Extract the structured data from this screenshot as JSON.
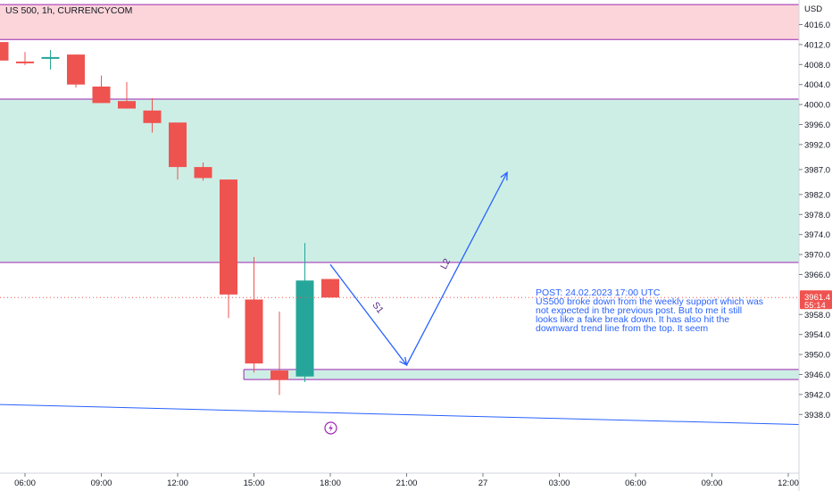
{
  "header": {
    "title": "US 500, 1h, CURRENCYCOM"
  },
  "currency": "USD",
  "chart_data": {
    "type": "candlestick",
    "ylim": [
      3930,
      4020
    ],
    "ytick_values": [
      4016,
      4012,
      4008,
      4004,
      4000,
      3996,
      3992,
      3987,
      3982,
      3978,
      3974,
      3970,
      3966,
      3958,
      3954,
      3950,
      3946,
      3942,
      3938
    ],
    "ytick_labels": [
      "4016.0",
      "4012.0",
      "4008.0",
      "4004.0",
      "4000.0",
      "3996.0",
      "3992.0",
      "3987.0",
      "3982.0",
      "3978.0",
      "3974.0",
      "3970.0",
      "3966.0",
      "3958.0",
      "3954.0",
      "3950.0",
      "3946.0",
      "3942.0",
      "3938.0"
    ],
    "x_labels": [
      {
        "i": 0,
        "label": "06:00"
      },
      {
        "i": 3,
        "label": "09:00"
      },
      {
        "i": 6,
        "label": "12:00"
      },
      {
        "i": 9,
        "label": "15:00"
      },
      {
        "i": 12,
        "label": "18:00"
      },
      {
        "i": 15,
        "label": "21:00"
      },
      {
        "i": 18,
        "label": "27"
      },
      {
        "i": 21,
        "label": "03:00"
      },
      {
        "i": 24,
        "label": "06:00"
      },
      {
        "i": 27,
        "label": "09:00"
      },
      {
        "i": 30,
        "label": "12:00"
      }
    ],
    "candles": [
      {
        "i": -1,
        "o": 4012.5,
        "h": 4013,
        "c": 4008.8,
        "l": 4008.5
      },
      {
        "i": 0,
        "o": 4008.6,
        "h": 4010.5,
        "c": 4008.3,
        "l": 4007.9
      },
      {
        "i": 1,
        "o": 4009.2,
        "h": 4010.9,
        "c": 4009.5,
        "l": 4007.0
      },
      {
        "i": 2,
        "o": 4010.0,
        "h": 4010.0,
        "c": 4004.0,
        "l": 4003.4
      },
      {
        "i": 3,
        "o": 4003.6,
        "h": 4005.8,
        "c": 4000.3,
        "l": 4000.3
      },
      {
        "i": 4,
        "o": 4000.7,
        "h": 4004.5,
        "c": 3999.2,
        "l": 3999.2
      },
      {
        "i": 5,
        "o": 3998.8,
        "h": 4001.3,
        "c": 3996.3,
        "l": 3994.4
      },
      {
        "i": 6,
        "o": 3996.4,
        "h": 3996.4,
        "c": 3987.5,
        "l": 3985.0
      },
      {
        "i": 7,
        "o": 3987.5,
        "h": 3988.4,
        "c": 3985.3,
        "l": 3984.8
      },
      {
        "i": 8,
        "o": 3985.0,
        "h": 3985.0,
        "c": 3962.0,
        "l": 3957.3
      },
      {
        "i": 9,
        "o": 3961.0,
        "h": 3969.5,
        "c": 3948.2,
        "l": 3946.4
      },
      {
        "i": 10,
        "o": 3946.8,
        "h": 3958.6,
        "c": 3944.9,
        "l": 3941.9
      },
      {
        "i": 11,
        "o": 3945.6,
        "h": 3972.3,
        "c": 3964.8,
        "l": 3944.5
      },
      {
        "i": 12,
        "o": 3965.1,
        "h": 3965.1,
        "c": 3961.4,
        "l": 3961.4
      }
    ],
    "last_price": {
      "value": 3961.4,
      "label": "3961.4",
      "timer": "55:14"
    },
    "zones": [
      {
        "name": "resistance",
        "from": 4013,
        "to": 4020,
        "i_from": -2,
        "i_to": 33.5,
        "color": "#fcd5da",
        "border": "#9c27b0"
      },
      {
        "name": "supply",
        "from": 3968.4,
        "to": 4001.1,
        "i_from": -2,
        "i_to": 33.5,
        "color": "#cdeee5",
        "border": "#9c27b0"
      },
      {
        "name": "support",
        "from": 3945,
        "to": 3947,
        "i_from": 8.6,
        "i_to": 33.5,
        "color": "#cdeee5",
        "border": "#9c27b0"
      }
    ],
    "trendline": {
      "i1": -2,
      "p1": 3940.0,
      "i2": 33.5,
      "p2": 3936.0,
      "color": "#2962ff"
    },
    "projection": {
      "points": [
        {
          "i": 12.0,
          "p": 3968.0
        },
        {
          "i": 15.0,
          "p": 3947.9
        },
        {
          "i": 18.95,
          "p": 3986.4
        }
      ],
      "wave_labels": [
        "S1",
        "L2"
      ],
      "color": "#2962ff"
    },
    "annotation": {
      "lines": [
        "POST: 24.02.2023 17:00 UTC",
        "US500 broke down from the weekly support which was",
        "not expected in the previous post. But to me it still",
        "looks like a fake break down. It has also hit the",
        "downward trend line from the top. It seem"
      ]
    },
    "colors": {
      "up": "#26a69a",
      "down": "#ef5350"
    }
  }
}
